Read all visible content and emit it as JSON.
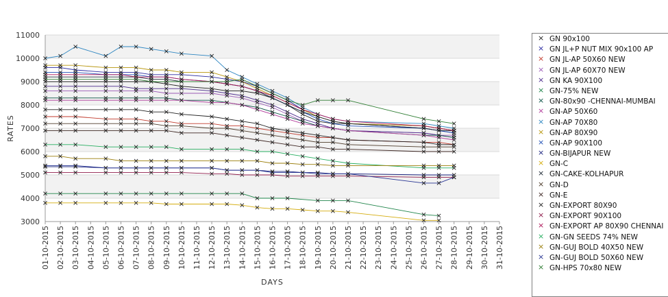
{
  "chart_data": {
    "type": "line",
    "title": "",
    "xlabel": "DAYS",
    "ylabel": "RATES",
    "ylim": [
      3000,
      11000
    ],
    "yticks": [
      3000,
      4000,
      5000,
      6000,
      7000,
      8000,
      9000,
      10000,
      11000
    ],
    "x": [
      "01-10-2015",
      "02-10-2015",
      "03-10-2015",
      "04-10-2015",
      "05-10-2015",
      "06-10-2015",
      "07-10-2015",
      "08-10-2015",
      "09-10-2015",
      "10-10-2015",
      "11-10-2015",
      "12-10-2015",
      "13-10-2015",
      "14-10-2015",
      "15-10-2015",
      "16-10-2015",
      "17-10-2015",
      "18-10-2015",
      "19-10-2015",
      "20-10-2015",
      "21-10-2015",
      "22-10-2015",
      "23-10-2015",
      "24-10-2015",
      "25-10-2015",
      "26-10-2015",
      "27-10-2015",
      "28-10-2015",
      "29-10-2015",
      "30-10-2015",
      "31-10-2015"
    ],
    "grid": true,
    "legend_position": "right",
    "series": [
      {
        "name": "GN 90x100",
        "color": "#1f1f1f",
        "values": [
          9000,
          9000,
          9000,
          null,
          9000,
          9000,
          9000,
          9000,
          8900,
          8800,
          null,
          8700,
          8600,
          8600,
          8500,
          8300,
          8000,
          7600,
          7300,
          7200,
          7200,
          null,
          null,
          null,
          null,
          7100,
          7000,
          6900,
          null,
          null,
          null
        ]
      },
      {
        "name": "GN JL+P NUT MIX 90x100 AP",
        "color": "#2a2aa0",
        "values": [
          9600,
          9600,
          9500,
          null,
          9400,
          9400,
          9400,
          9300,
          9300,
          9300,
          null,
          9200,
          9100,
          9000,
          8800,
          8500,
          8200,
          7800,
          7500,
          7300,
          7200,
          null,
          null,
          null,
          null,
          7000,
          6900,
          6800,
          null,
          null,
          null
        ]
      },
      {
        "name": "GN JL-AP 50X60 NEW",
        "color": "#c0392b",
        "values": [
          7500,
          7500,
          7500,
          null,
          7400,
          7400,
          7400,
          7300,
          7300,
          7200,
          null,
          7200,
          7100,
          7100,
          7000,
          6900,
          6800,
          6700,
          6600,
          6600,
          6500,
          null,
          null,
          null,
          null,
          6400,
          6400,
          6300,
          null,
          null,
          null
        ]
      },
      {
        "name": "GN JL-AP 60X70 NEW",
        "color": "#9b59b6",
        "values": [
          8600,
          8600,
          8600,
          null,
          8600,
          8600,
          8600,
          8600,
          8500,
          8500,
          null,
          8500,
          8400,
          8300,
          8100,
          7900,
          7600,
          7300,
          7100,
          7000,
          6900,
          null,
          null,
          null,
          null,
          6800,
          6700,
          6700,
          null,
          null,
          null
        ]
      },
      {
        "name": "GN KA 90X100",
        "color": "#4b2a8c",
        "values": [
          8800,
          8800,
          8800,
          null,
          8800,
          8800,
          8700,
          8700,
          8700,
          8700,
          null,
          8600,
          8500,
          8400,
          8200,
          8000,
          7700,
          7400,
          7200,
          7000,
          6900,
          null,
          null,
          null,
          null,
          6800,
          6700,
          6600,
          null,
          null,
          null
        ]
      },
      {
        "name": "GN-75% NEW",
        "color": "#1e8449",
        "values": [
          4200,
          4200,
          4200,
          null,
          4200,
          4200,
          4200,
          4200,
          4200,
          4200,
          null,
          4200,
          4200,
          4200,
          4000,
          4000,
          4000,
          null,
          3900,
          3900,
          3900,
          null,
          null,
          null,
          null,
          3300,
          3250,
          null,
          null,
          null,
          null
        ]
      },
      {
        "name": "GN-80x90 -CHENNAI-MUMBAI",
        "color": "#0b5345",
        "values": [
          8300,
          8300,
          8300,
          null,
          8300,
          8300,
          8300,
          8300,
          8300,
          8200,
          null,
          8200,
          8100,
          8000,
          7900,
          7700,
          7500,
          7300,
          7100,
          7000,
          6900,
          null,
          null,
          null,
          null,
          6700,
          6700,
          6600,
          null,
          null,
          null
        ]
      },
      {
        "name": "GN-AP 50X60",
        "color": "#b03a9a",
        "values": [
          8200,
          8200,
          8200,
          null,
          8200,
          8200,
          8200,
          8200,
          8200,
          8200,
          null,
          8100,
          8100,
          8000,
          7800,
          7600,
          7400,
          7200,
          7100,
          7000,
          6900,
          null,
          null,
          null,
          null,
          6700,
          6600,
          6500,
          null,
          null,
          null
        ]
      },
      {
        "name": "GN-AP 70X80",
        "color": "#2e86c1",
        "values": [
          10000,
          10100,
          10500,
          null,
          10100,
          10500,
          10500,
          10400,
          10300,
          10200,
          null,
          10100,
          9500,
          9200,
          8900,
          8600,
          8300,
          7900,
          7600,
          7400,
          7300,
          null,
          null,
          null,
          null,
          7200,
          7100,
          7000,
          null,
          null,
          null
        ]
      },
      {
        "name": "GN-AP 80X90",
        "color": "#b7950b",
        "values": [
          9700,
          9700,
          9700,
          null,
          9600,
          9600,
          9600,
          9500,
          9500,
          9400,
          null,
          9400,
          9200,
          9000,
          8700,
          8400,
          8100,
          7800,
          7500,
          7300,
          7200,
          null,
          null,
          null,
          null,
          7100,
          7000,
          6900,
          null,
          null,
          null
        ]
      },
      {
        "name": "GN-AP 90X100",
        "color": "#1f4fb5",
        "values": [
          9400,
          9400,
          9400,
          null,
          9300,
          9300,
          9300,
          9200,
          9200,
          9100,
          null,
          9000,
          8900,
          8800,
          8600,
          8300,
          8000,
          7700,
          7400,
          7200,
          7100,
          null,
          null,
          null,
          null,
          7000,
          6900,
          6800,
          null,
          null,
          null
        ]
      },
      {
        "name": "GN-BIJAPUR NEW",
        "color": "#1a237e",
        "values": [
          5350,
          5350,
          5350,
          null,
          5300,
          5300,
          5300,
          5300,
          5300,
          5300,
          null,
          5300,
          5200,
          5200,
          5200,
          5150,
          5150,
          5100,
          5100,
          5050,
          5050,
          null,
          null,
          null,
          null,
          5000,
          5000,
          5000,
          null,
          null,
          null
        ]
      },
      {
        "name": "GN-C",
        "color": "#d4ac0d",
        "values": [
          3800,
          3800,
          3800,
          null,
          3800,
          3800,
          3800,
          3800,
          3750,
          3750,
          null,
          3750,
          3750,
          3700,
          3600,
          3550,
          3550,
          3500,
          3450,
          3450,
          3400,
          null,
          null,
          null,
          null,
          3050,
          3050,
          null,
          null,
          null,
          null
        ]
      },
      {
        "name": "GN-CAKE-KOLHAPUR",
        "color": "#1b2631",
        "values": [
          9200,
          9200,
          9200,
          null,
          9200,
          9200,
          9200,
          9100,
          9100,
          9000,
          null,
          9000,
          8900,
          8800,
          8600,
          8300,
          8000,
          7700,
          7500,
          7300,
          7200,
          null,
          null,
          null,
          null,
          7000,
          6900,
          6900,
          null,
          null,
          null
        ]
      },
      {
        "name": "GN-D",
        "color": "#4d3b2a",
        "values": [
          7200,
          7200,
          7200,
          null,
          7200,
          7200,
          7200,
          7200,
          7100,
          7100,
          null,
          7000,
          7000,
          6900,
          6800,
          6700,
          6600,
          6500,
          6400,
          6400,
          6300,
          null,
          null,
          null,
          null,
          6200,
          6200,
          6200,
          null,
          null,
          null
        ]
      },
      {
        "name": "GN-E",
        "color": "#3e2723",
        "values": [
          6900,
          6900,
          6900,
          null,
          6900,
          6900,
          6900,
          6900,
          6900,
          6800,
          null,
          6800,
          6700,
          6600,
          6500,
          6400,
          6300,
          6200,
          6200,
          6100,
          6100,
          null,
          null,
          null,
          null,
          6000,
          6000,
          6000,
          null,
          null,
          null
        ]
      },
      {
        "name": "GN-EXPORT 80X90",
        "color": "#212121",
        "values": [
          7800,
          7800,
          7800,
          null,
          7800,
          7800,
          7800,
          7700,
          7700,
          7600,
          null,
          7500,
          7400,
          7300,
          7200,
          7000,
          6900,
          6800,
          6700,
          6600,
          6500,
          null,
          null,
          null,
          null,
          6400,
          6300,
          6300,
          null,
          null,
          null
        ]
      },
      {
        "name": "GN-EXPORT 90X100",
        "color": "#8e1b4a",
        "values": [
          5100,
          5100,
          5100,
          null,
          5100,
          5100,
          5100,
          5100,
          5100,
          5100,
          null,
          5050,
          5050,
          5000,
          5000,
          5000,
          4950,
          4950,
          4950,
          4950,
          4950,
          null,
          null,
          null,
          null,
          4900,
          4900,
          4900,
          null,
          null,
          null
        ]
      },
      {
        "name": "GN-EXPORT AP 80X90 CHENNAI",
        "color": "#ad1457",
        "values": [
          9300,
          9300,
          9300,
          null,
          9300,
          9300,
          9200,
          9200,
          9200,
          9100,
          null,
          9000,
          8900,
          8800,
          8600,
          8400,
          8100,
          7800,
          7600,
          7400,
          7300,
          null,
          null,
          null,
          null,
          7100,
          7000,
          6900,
          null,
          null,
          null
        ]
      },
      {
        "name": "GN-GN SEEDS 74% NEW",
        "color": "#27ae60",
        "values": [
          6300,
          6300,
          6300,
          null,
          6200,
          6200,
          6200,
          6200,
          6200,
          6100,
          null,
          6100,
          6100,
          6100,
          6000,
          6000,
          5900,
          5800,
          5700,
          5600,
          5500,
          null,
          null,
          null,
          null,
          5300,
          5300,
          5300,
          null,
          null,
          null
        ]
      },
      {
        "name": "GN-GUJ BOLD 40X50 NEW",
        "color": "#9a7d0a",
        "values": [
          5800,
          5800,
          5700,
          null,
          5700,
          5600,
          5600,
          5600,
          5600,
          5600,
          null,
          5600,
          5600,
          5600,
          5600,
          5500,
          5500,
          5450,
          5450,
          5400,
          5400,
          null,
          null,
          null,
          null,
          5400,
          5400,
          5400,
          null,
          null,
          null
        ]
      },
      {
        "name": "GN-GUJ BOLD 50X60 NEW",
        "color": "#283593",
        "values": [
          5400,
          5400,
          5400,
          null,
          5300,
          5300,
          5300,
          5300,
          5300,
          5300,
          null,
          5300,
          5200,
          5200,
          5200,
          5100,
          5100,
          5100,
          5050,
          5050,
          5050,
          null,
          null,
          null,
          null,
          4650,
          4650,
          4900,
          null,
          null,
          null
        ]
      },
      {
        "name": "GN-HPS  70x80 NEW",
        "color": "#2e7d32",
        "values": [
          9100,
          9100,
          9100,
          null,
          9100,
          9100,
          9100,
          9000,
          9000,
          9000,
          null,
          9000,
          9000,
          9100,
          8800,
          8500,
          8200,
          8000,
          8200,
          8200,
          8200,
          null,
          null,
          null,
          null,
          7400,
          7300,
          7200,
          null,
          null,
          null
        ]
      }
    ]
  }
}
